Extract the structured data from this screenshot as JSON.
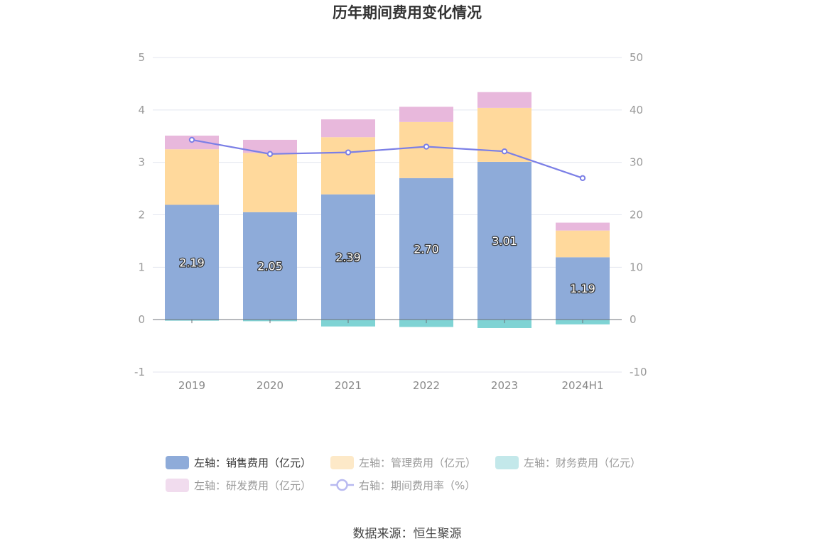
{
  "title": "历年期间费用变化情况",
  "source": "数据来源：恒生聚源",
  "colors": {
    "sales": "#8eabd9",
    "admin": "#ffd99c",
    "finance": "#7fd3d4",
    "rnd": "#e8b8dc",
    "rate": "#7b7fe6",
    "grid": "#e3e6ef",
    "axis": "#6e7079"
  },
  "chart_data": {
    "type": "bar",
    "stacked": true,
    "categories": [
      "2019",
      "2020",
      "2021",
      "2022",
      "2023",
      "2024H1"
    ],
    "left_axis": {
      "ylim": [
        -1,
        5
      ],
      "ticks": [
        "-1",
        "0",
        "1",
        "2",
        "3",
        "4",
        "5"
      ]
    },
    "right_axis": {
      "ylim": [
        -10,
        50
      ],
      "ticks": [
        "-10",
        "0",
        "10",
        "20",
        "30",
        "40",
        "50"
      ]
    },
    "grid": true,
    "legend_position": "bottom",
    "series": [
      {
        "key": "sales",
        "name": "左轴：销售费用（亿元）",
        "axis": "left",
        "type": "bar",
        "values": [
          2.19,
          2.05,
          2.39,
          2.7,
          3.01,
          1.19
        ],
        "labels": [
          "2.19",
          "2.05",
          "2.39",
          "2.70",
          "3.01",
          "1.19"
        ]
      },
      {
        "key": "admin",
        "name": "左轴：管理费用（亿元）",
        "axis": "left",
        "type": "bar",
        "values": [
          1.06,
          1.13,
          1.09,
          1.07,
          1.03,
          0.51
        ]
      },
      {
        "key": "finance",
        "name": "左轴：财务费用（亿元）",
        "axis": "left",
        "type": "bar",
        "values": [
          -0.02,
          -0.03,
          -0.13,
          -0.14,
          -0.16,
          -0.09
        ]
      },
      {
        "key": "rnd",
        "name": "左轴：研发费用（亿元）",
        "axis": "left",
        "type": "bar",
        "values": [
          0.26,
          0.25,
          0.34,
          0.29,
          0.3,
          0.15
        ]
      },
      {
        "key": "rate",
        "name": "右轴：期间费用率（%）",
        "axis": "right",
        "type": "line",
        "values": [
          34.3,
          31.6,
          31.9,
          33.0,
          32.1,
          27.0
        ]
      }
    ]
  }
}
